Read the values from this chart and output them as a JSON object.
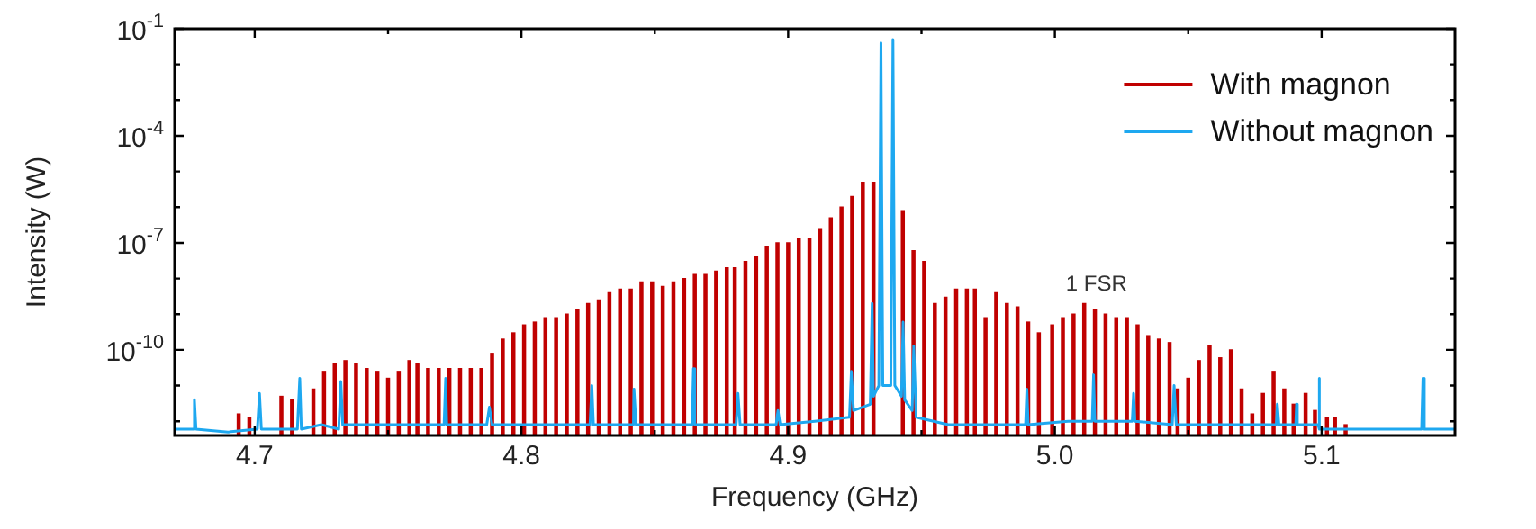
{
  "chart_data": {
    "type": "line",
    "xlabel": "Frequency (GHz)",
    "ylabel": "Intensity (W)",
    "log": "y",
    "legend": "top right",
    "marker": "none",
    "grid": false,
    "xlim": [
      4.67,
      5.15
    ],
    "ylim": [
      4e-13,
      0.1
    ],
    "xticks": [
      {
        "value": 4.7,
        "label": "4.7"
      },
      {
        "value": 4.75,
        "label": null
      },
      {
        "value": 4.8,
        "label": "4.8"
      },
      {
        "value": 4.85,
        "label": null
      },
      {
        "value": 4.9,
        "label": "4.9"
      },
      {
        "value": 4.95,
        "label": null
      },
      {
        "value": 5,
        "label": "5.0"
      },
      {
        "value": 5.05,
        "label": null
      },
      {
        "value": 5.1,
        "label": "5.1"
      }
    ],
    "yticks": [
      {
        "value": 0.1,
        "label": "10$^{-1}$"
      },
      {
        "value": 0.01,
        "label": null
      },
      {
        "value": 0.001,
        "label": null
      },
      {
        "value": 0.0001,
        "label": "10$^{-4}$"
      },
      {
        "value": 1e-05,
        "label": null
      },
      {
        "value": 1e-06,
        "label": null
      },
      {
        "value": 1e-07,
        "label": "10$^{-7}$"
      },
      {
        "value": 1e-08,
        "label": null
      },
      {
        "value": 1e-09,
        "label": null
      },
      {
        "value": 1e-10,
        "label": "10$^{-10}$"
      },
      {
        "value": 1e-11,
        "label": null
      },
      {
        "value": 1e-12,
        "label": null
      }
    ],
    "annotations": [
      "1 FSR"
    ],
    "series": [
      {
        "name": "With magnon",
        "type": "bar",
        "color": "#c00000",
        "x": [
          4.694,
          4.698,
          4.71,
          4.714,
          4.722,
          4.726,
          4.73,
          4.734,
          4.738,
          4.742,
          4.746,
          4.75,
          4.754,
          4.758,
          4.761,
          4.765,
          4.769,
          4.773,
          4.777,
          4.781,
          4.785,
          4.789,
          4.793,
          4.797,
          4.801,
          4.805,
          4.809,
          4.813,
          4.817,
          4.821,
          4.825,
          4.829,
          4.833,
          4.837,
          4.841,
          4.845,
          4.849,
          4.853,
          4.857,
          4.861,
          4.865,
          4.869,
          4.873,
          4.877,
          4.88,
          4.884,
          4.888,
          4.892,
          4.896,
          4.9,
          4.904,
          4.908,
          4.912,
          4.916,
          4.92,
          4.924,
          4.928,
          4.932,
          4.943,
          4.947,
          4.951,
          4.955,
          4.959,
          4.963,
          4.967,
          4.97,
          4.974,
          4.978,
          4.982,
          4.986,
          4.99,
          4.994,
          4.999,
          5.003,
          5.007,
          5.011,
          5.015,
          5.019,
          5.023,
          5.027,
          5.031,
          5.035,
          5.039,
          5.043,
          5.046,
          5.05,
          5.054,
          5.058,
          5.062,
          5.066,
          5.07,
          5.074,
          5.078,
          5.082,
          5.086,
          5.0895,
          5.094,
          5.0975,
          5.102,
          5.105,
          5.109
        ],
        "values": [
          1.6e-12,
          1.3e-12,
          5e-12,
          4e-12,
          8e-12,
          2.5e-11,
          4e-11,
          5e-11,
          4e-11,
          3e-11,
          2.5e-11,
          1.6e-11,
          2.5e-11,
          5e-11,
          4e-11,
          3e-11,
          3e-11,
          3e-11,
          3e-11,
          3e-11,
          3e-11,
          8e-11,
          2e-10,
          3e-10,
          5e-10,
          6e-10,
          8e-10,
          8e-10,
          1e-09,
          1.3e-09,
          2e-09,
          2.5e-09,
          4e-09,
          5e-09,
          5e-09,
          8e-09,
          8e-09,
          6e-09,
          8e-09,
          1e-08,
          1.3e-08,
          1.3e-08,
          1.6e-08,
          2e-08,
          2e-08,
          3e-08,
          4e-08,
          8e-08,
          1e-07,
          1e-07,
          1.3e-07,
          1.3e-07,
          2.5e-07,
          5e-07,
          1e-06,
          2e-06,
          5e-06,
          5e-06,
          8e-07,
          6e-08,
          3e-08,
          2e-09,
          3e-09,
          5e-09,
          5e-09,
          5e-09,
          8e-10,
          4e-09,
          2e-09,
          1.6e-09,
          6e-10,
          3e-10,
          5e-10,
          8e-10,
          1e-09,
          2e-09,
          1.3e-09,
          1e-09,
          8e-10,
          8e-10,
          5e-10,
          2.5e-10,
          2e-10,
          1.6e-10,
          8e-12,
          1.6e-11,
          5e-11,
          1.3e-10,
          6e-11,
          1e-10,
          8e-12,
          1.6e-12,
          6e-12,
          2.5e-11,
          8e-12,
          3e-12,
          6e-12,
          2e-12,
          1.3e-12,
          1.3e-12,
          8e-13
        ]
      },
      {
        "name": "Without magnon",
        "color": "#1ea8f0",
        "x": [
          4.67,
          4.677,
          4.6774,
          4.678,
          4.69,
          4.701,
          4.7018,
          4.7025,
          4.716,
          4.7169,
          4.7175,
          4.725,
          4.7315,
          4.7323,
          4.733,
          4.75,
          4.771,
          4.7716,
          4.772,
          4.787,
          4.788,
          4.789,
          4.805,
          4.8257,
          4.8264,
          4.827,
          4.842,
          4.8422,
          4.843,
          4.864,
          4.8645,
          4.865,
          4.8805,
          4.8812,
          4.882,
          4.8955,
          4.8962,
          4.897,
          4.91,
          4.923,
          4.9237,
          4.9245,
          4.9308,
          4.9315,
          4.932,
          4.934,
          4.9348,
          4.9355,
          4.9385,
          4.9393,
          4.94,
          4.9425,
          4.9431,
          4.9437,
          4.9465,
          4.9471,
          4.948,
          4.96,
          4.975,
          4.989,
          4.9895,
          4.99,
          5.005,
          5.014,
          5.0145,
          5.015,
          5.029,
          5.0295,
          5.03,
          5.044,
          5.0447,
          5.0455,
          5.065,
          5.083,
          5.0834,
          5.084,
          5.0903,
          5.0906,
          5.0909,
          5.0987,
          5.099,
          5.0993,
          5.12,
          5.1375,
          5.138,
          5.1385,
          5.15
        ],
        "values": [
          6e-13,
          6e-13,
          4e-12,
          6e-13,
          5e-13,
          6e-13,
          6e-12,
          6e-13,
          6e-13,
          1.6e-11,
          6e-13,
          8e-13,
          6e-13,
          1.3e-11,
          8e-13,
          8e-13,
          8e-13,
          1.6e-11,
          8e-13,
          8e-13,
          2.5e-12,
          8e-13,
          8e-13,
          8e-13,
          1e-11,
          8e-13,
          8e-13,
          8e-12,
          8e-13,
          8e-13,
          3e-11,
          8e-13,
          8e-13,
          6e-12,
          8e-13,
          8e-13,
          2e-12,
          8e-13,
          1e-12,
          1.3e-12,
          2.5e-11,
          2e-12,
          3e-12,
          2e-09,
          5e-12,
          1e-11,
          0.04,
          1e-11,
          1e-11,
          0.05,
          1e-11,
          5e-12,
          6e-10,
          4e-12,
          2e-12,
          1.3e-10,
          1.3e-12,
          8e-13,
          8e-13,
          8e-13,
          8e-12,
          8e-13,
          1e-12,
          1e-12,
          2e-11,
          1e-12,
          1e-12,
          6e-12,
          1e-12,
          8e-13,
          1e-11,
          8e-13,
          8e-13,
          8e-13,
          3e-12,
          8e-13,
          8e-13,
          3e-12,
          8e-13,
          8e-13,
          1.6e-11,
          6e-13,
          6e-13,
          6e-13,
          1.6e-11,
          6e-13,
          6e-13
        ]
      }
    ]
  }
}
